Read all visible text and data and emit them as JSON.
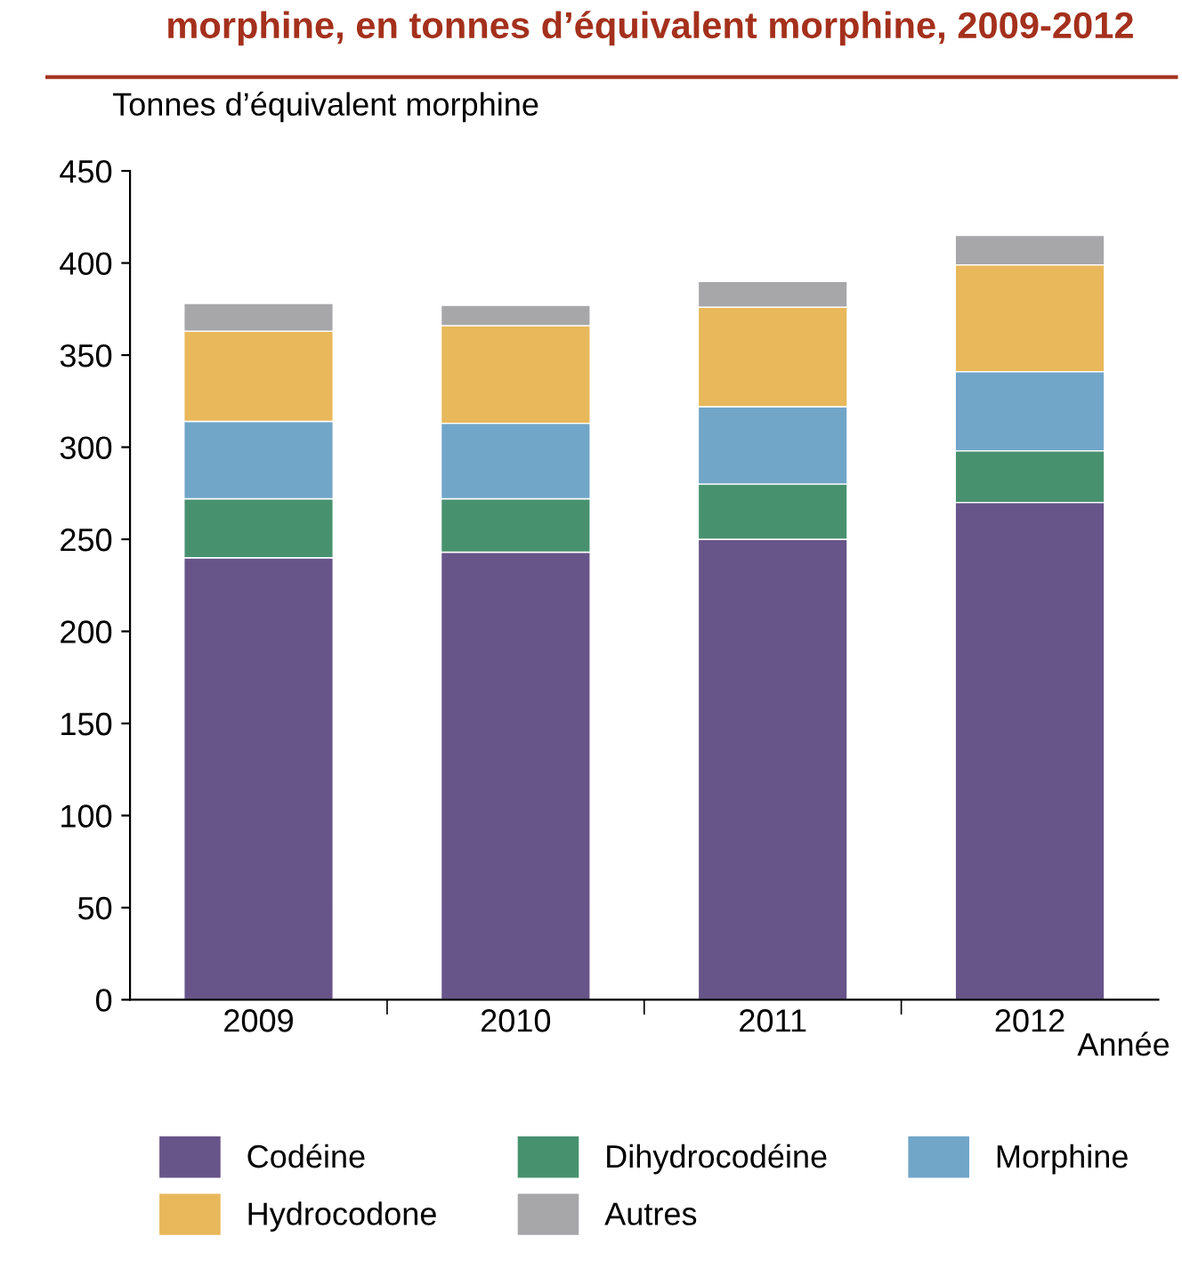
{
  "chart_data": {
    "type": "bar",
    "stacked": true,
    "title": "morphine, en tonnes d’équivalent morphine, 2009-2012",
    "ylabel": "Tonnes d’équivalent morphine",
    "xlabel": "Année",
    "categories": [
      "2009",
      "2010",
      "2011",
      "2012"
    ],
    "series": [
      {
        "name": "Codéine",
        "color": "#675489",
        "values": [
          240,
          243,
          250,
          270
        ]
      },
      {
        "name": "Dihydrocodéine",
        "color": "#48916f",
        "values": [
          32,
          29,
          30,
          28
        ]
      },
      {
        "name": "Morphine",
        "color": "#71a6c9",
        "values": [
          42,
          41,
          42,
          43
        ]
      },
      {
        "name": "Hydrocodone",
        "color": "#e8b85b",
        "values": [
          49,
          53,
          54,
          58
        ]
      },
      {
        "name": "Autres",
        "color": "#a7a7aa",
        "values": [
          15,
          11,
          14,
          16
        ]
      }
    ],
    "ylim": [
      0,
      450
    ],
    "yticks": [
      0,
      50,
      100,
      150,
      200,
      250,
      300,
      350,
      400,
      450
    ],
    "grid": false,
    "legend": "bottom"
  }
}
